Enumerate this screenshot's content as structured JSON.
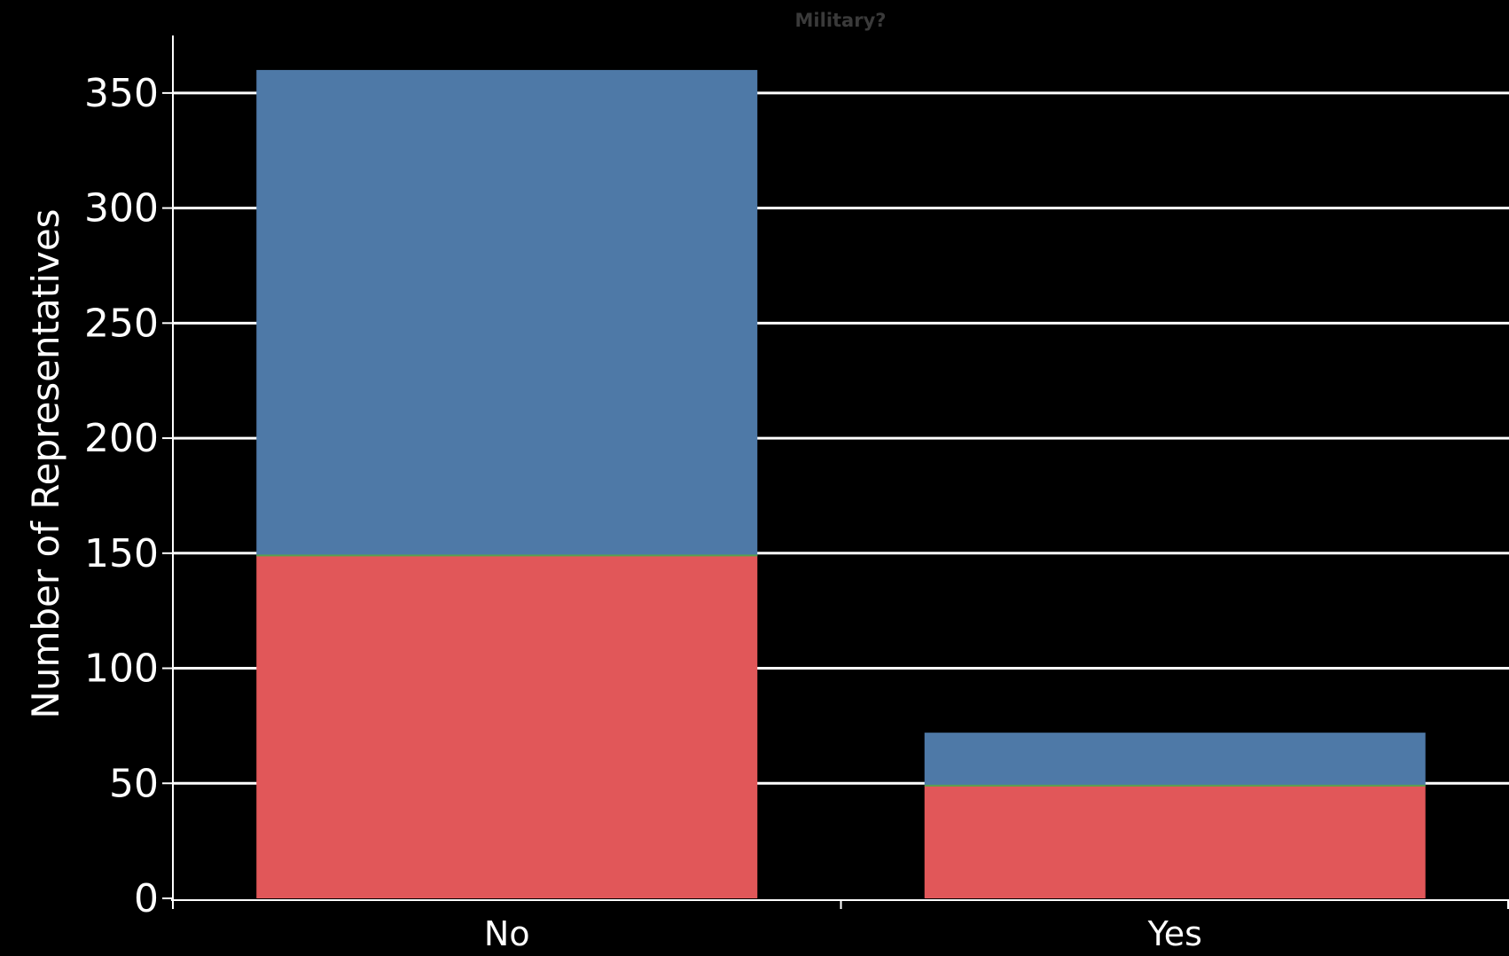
{
  "chart_data": {
    "type": "bar",
    "stacked": true,
    "title": "Military?",
    "xlabel": "",
    "ylabel": "Number of Representatives",
    "categories": [
      "No",
      "Yes"
    ],
    "ylim": [
      0,
      375
    ],
    "yticks": [
      0,
      50,
      100,
      150,
      200,
      250,
      300,
      350
    ],
    "grid": true,
    "series": [
      {
        "color": "#e15759",
        "values": [
          149,
          49
        ]
      },
      {
        "color": "#4e79a7",
        "values": [
          211,
          23
        ]
      }
    ],
    "colors": {
      "background": "#000000",
      "gridline": "#ffffff",
      "axis": "#ffffff",
      "text": "#ffffff",
      "title": "#3a3a3a",
      "segment_border": "#59a14f"
    }
  }
}
